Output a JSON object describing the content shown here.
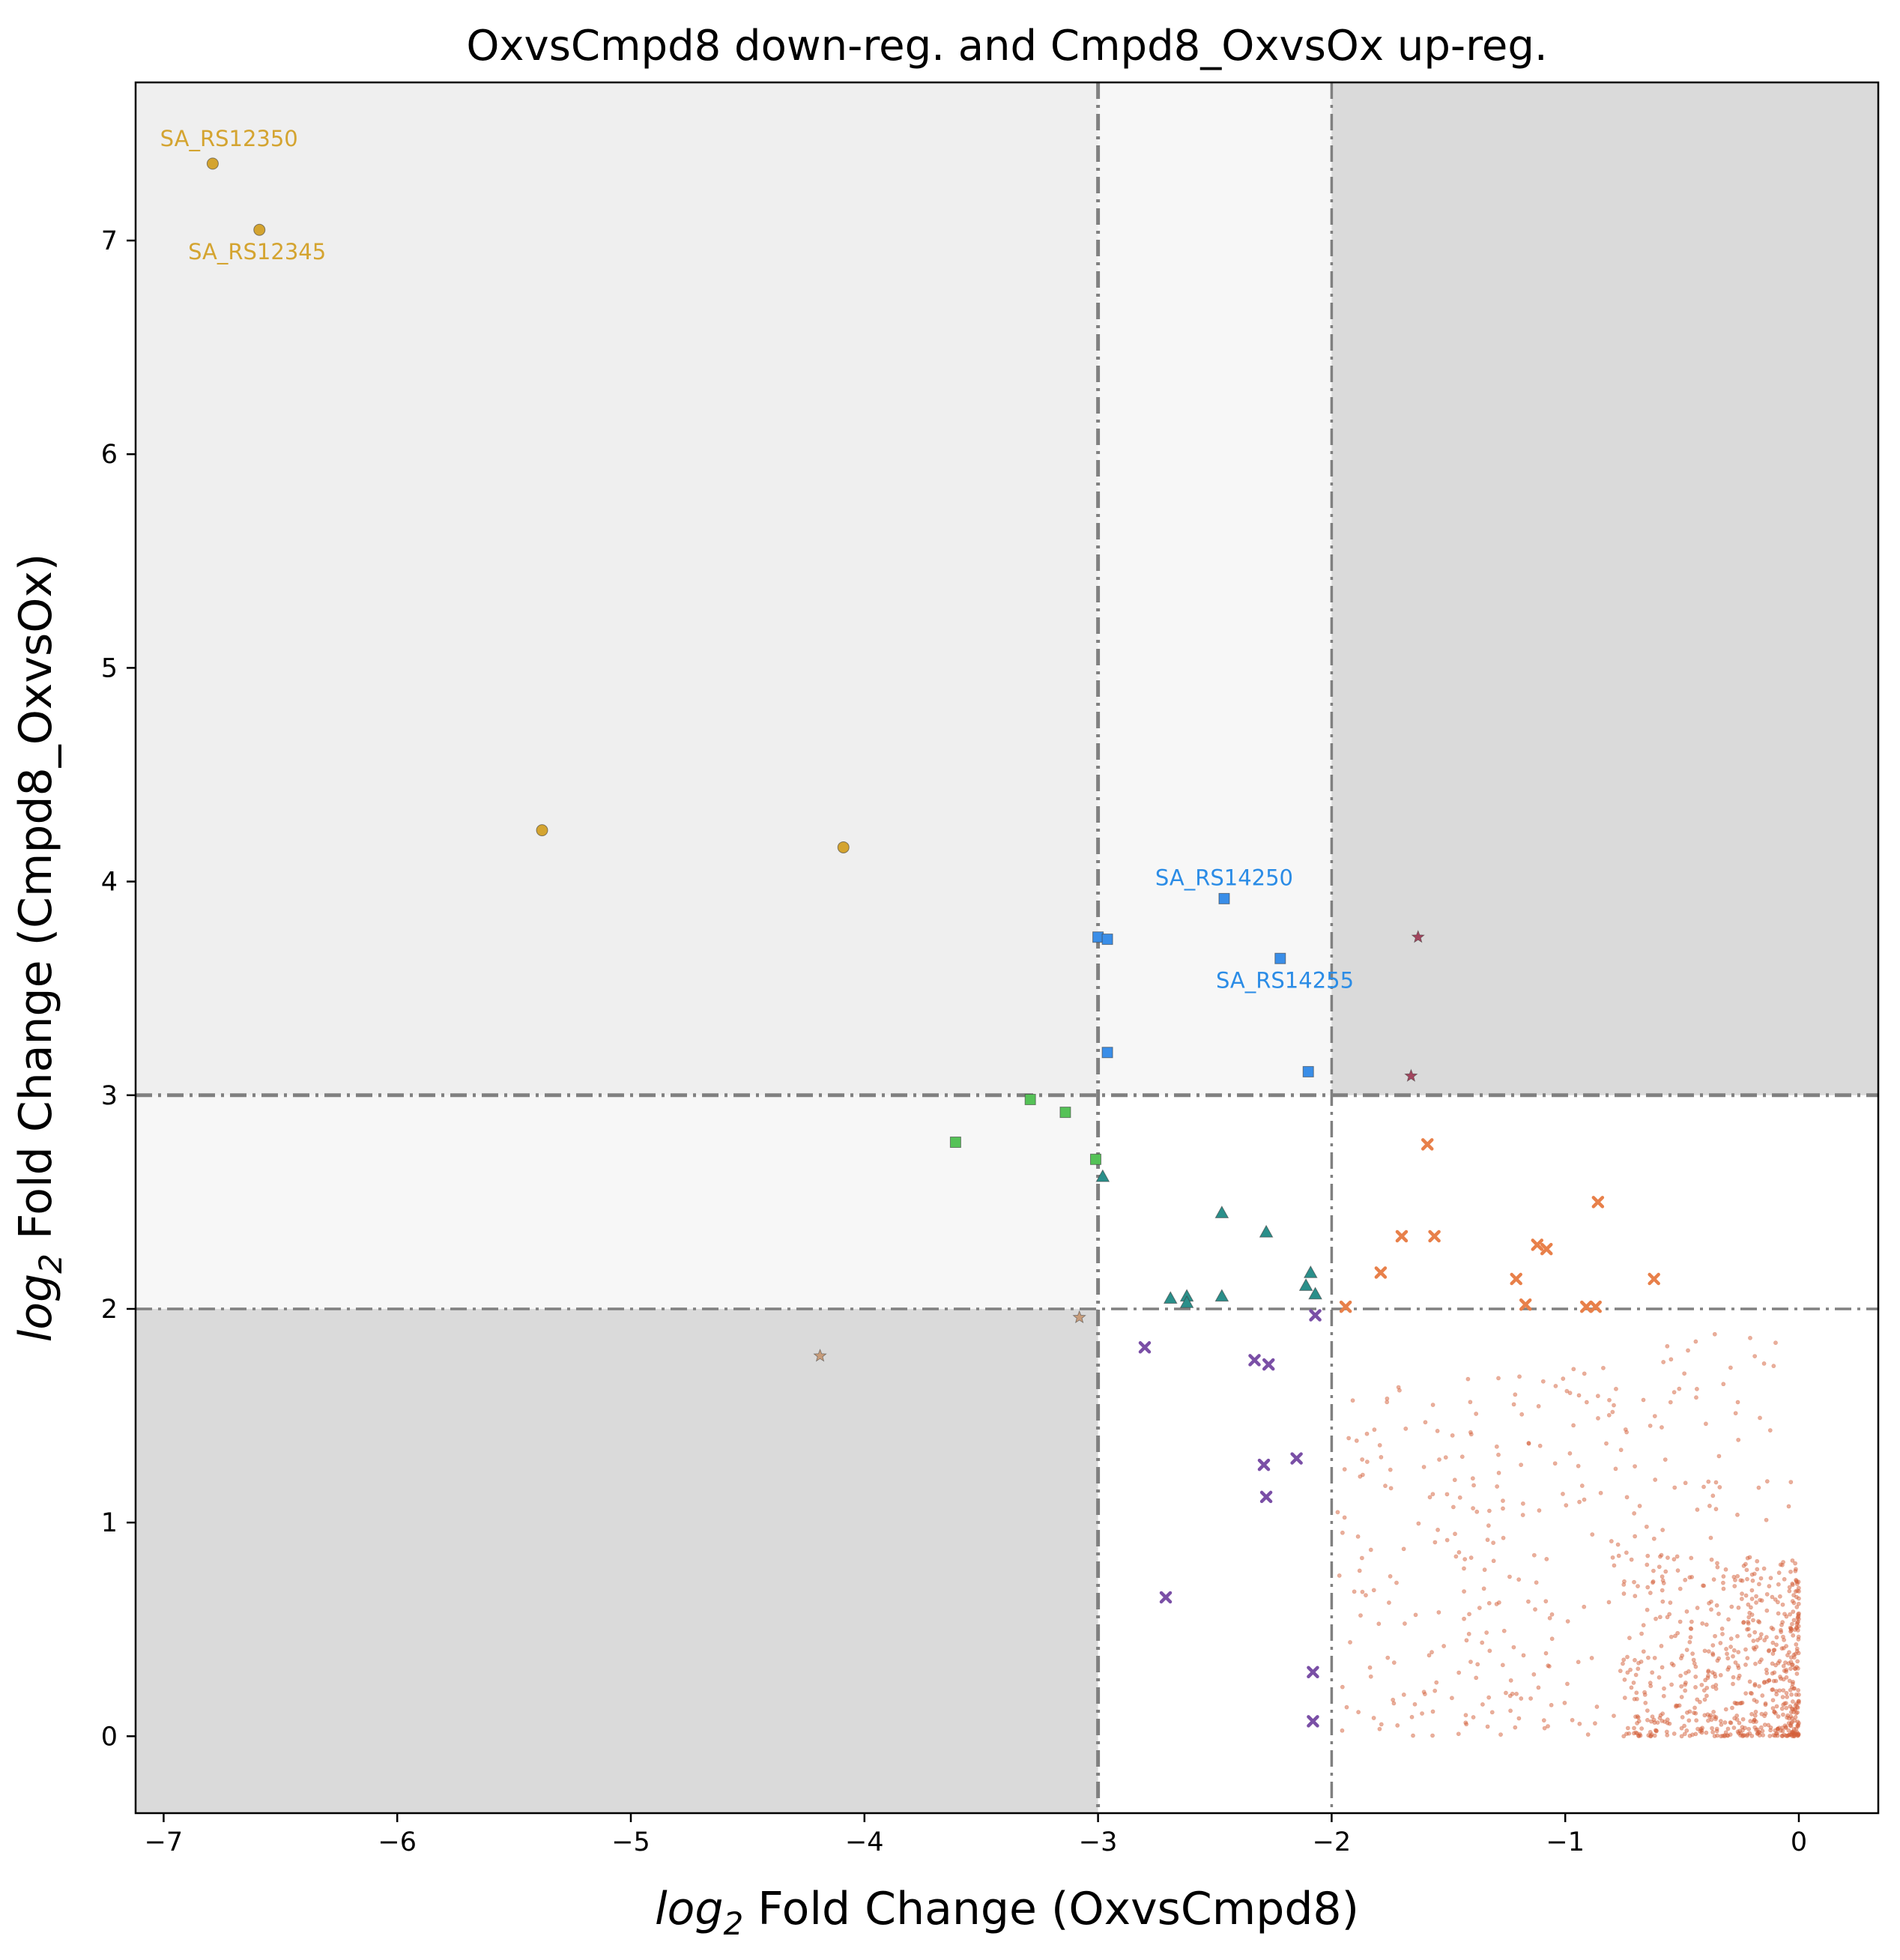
{
  "chart_data": {
    "type": "scatter",
    "title": "OxvsCmpd8 down-reg. and Cmpd8_OxvsOx up-reg.",
    "xlabel_prefix": "log",
    "xlabel_sub": "2",
    "xlabel_rest": " Fold Change (OxvsCmpd8)",
    "ylabel_prefix": "log",
    "ylabel_sub": "2",
    "ylabel_rest": " Fold Change (Cmpd8_OxvsOx)",
    "xlim": [
      -7.12,
      0.34
    ],
    "ylim": [
      -0.36,
      7.74
    ],
    "grid": false,
    "xticks": [
      -7,
      -6,
      -5,
      -4,
      -3,
      -2,
      -1,
      0
    ],
    "yticks": [
      0,
      1,
      2,
      3,
      4,
      5,
      6,
      7
    ],
    "xtick_labels": [
      "−7",
      "−6",
      "−5",
      "−4",
      "−3",
      "−2",
      "−1",
      "0"
    ],
    "ytick_labels": [
      "0",
      "1",
      "2",
      "3",
      "4",
      "5",
      "6",
      "7"
    ],
    "thresholds": {
      "x": [
        -3,
        -2
      ],
      "y": [
        2,
        3
      ]
    },
    "regions": [
      {
        "x": [
          -7.12,
          -3
        ],
        "y": [
          3,
          7.74
        ],
        "color": "#efefef"
      },
      {
        "x": [
          -3,
          -2
        ],
        "y": [
          3,
          7.74
        ],
        "color": "#f7f7f7"
      },
      {
        "x": [
          -7.12,
          -3
        ],
        "y": [
          2,
          3
        ],
        "color": "#f7f7f7"
      },
      {
        "x": [
          -2,
          0.34
        ],
        "y": [
          3,
          7.74
        ],
        "color": "#dadada"
      },
      {
        "x": [
          -7.12,
          -3
        ],
        "y": [
          -0.36,
          2
        ],
        "color": "#dadada"
      }
    ],
    "series": [
      {
        "color": "#d4a430",
        "marker": "circle",
        "points": [
          [
            -6.79,
            7.36
          ],
          [
            -6.59,
            7.05
          ],
          [
            -5.38,
            4.24
          ],
          [
            -4.09,
            4.16
          ]
        ]
      },
      {
        "color": "#3a8ee8",
        "marker": "square",
        "points": [
          [
            -2.46,
            3.92
          ],
          [
            -2.22,
            3.64
          ],
          [
            -3.0,
            3.74
          ],
          [
            -2.96,
            3.73
          ],
          [
            -2.96,
            3.2
          ],
          [
            -2.1,
            3.11
          ]
        ]
      },
      {
        "color": "#a3455e",
        "marker": "star",
        "points": [
          [
            -1.63,
            3.74
          ],
          [
            -1.66,
            3.09
          ]
        ]
      },
      {
        "color": "#55c257",
        "marker": "square",
        "points": [
          [
            -3.61,
            2.78
          ],
          [
            -3.29,
            2.98
          ],
          [
            -3.14,
            2.92
          ],
          [
            -3.01,
            2.7
          ]
        ]
      },
      {
        "color": "#2a8f8a",
        "marker": "triangle",
        "points": [
          [
            -2.98,
            2.62
          ],
          [
            -2.47,
            2.45
          ],
          [
            -2.28,
            2.36
          ],
          [
            -2.09,
            2.17
          ],
          [
            -2.11,
            2.11
          ],
          [
            -2.07,
            2.07
          ],
          [
            -2.47,
            2.06
          ],
          [
            -2.62,
            2.06
          ],
          [
            -2.69,
            2.05
          ],
          [
            -2.62,
            2.03
          ]
        ]
      },
      {
        "color": "#c79c7a",
        "marker": "star",
        "points": [
          [
            -3.08,
            1.96
          ],
          [
            -4.19,
            1.78
          ]
        ]
      },
      {
        "color": "#7a4fa6",
        "marker": "x",
        "points": [
          [
            -2.8,
            1.82
          ],
          [
            -2.33,
            1.76
          ],
          [
            -2.27,
            1.74
          ],
          [
            -2.07,
            1.97
          ],
          [
            -2.15,
            1.3
          ],
          [
            -2.29,
            1.27
          ],
          [
            -2.28,
            1.12
          ],
          [
            -2.71,
            0.65
          ],
          [
            -2.08,
            0.3
          ],
          [
            -2.08,
            0.07
          ]
        ]
      },
      {
        "color": "#e8804a",
        "marker": "x",
        "points": [
          [
            -1.59,
            2.77
          ],
          [
            -0.86,
            2.5
          ],
          [
            -1.7,
            2.34
          ],
          [
            -1.56,
            2.34
          ],
          [
            -1.12,
            2.3
          ],
          [
            -1.08,
            2.28
          ],
          [
            -1.79,
            2.17
          ],
          [
            -1.21,
            2.14
          ],
          [
            -0.62,
            2.14
          ],
          [
            -1.94,
            2.01
          ],
          [
            -1.17,
            2.02
          ],
          [
            -0.91,
            2.01
          ],
          [
            -0.87,
            2.01
          ]
        ]
      },
      {
        "color": "#d4603a",
        "marker": "dot",
        "opacity": 0.5,
        "generated": true,
        "generator": {
          "count": 950,
          "seed": 17,
          "xmin": -2.0,
          "xmax": 0.0,
          "ymin": 0.0,
          "ymax": 2.0
        }
      }
    ],
    "annotations": [
      {
        "text": "SA_RS12350",
        "x": -6.72,
        "y": 7.47,
        "color": "#d4a430"
      },
      {
        "text": "SA_RS12345",
        "x": -6.6,
        "y": 6.94,
        "color": "#d4a430"
      },
      {
        "text": "SA_RS14250",
        "x": -2.46,
        "y": 4.01,
        "color": "#2b8ce6"
      },
      {
        "text": "SA_RS14255",
        "x": -2.2,
        "y": 3.53,
        "color": "#2b8ce6"
      }
    ]
  }
}
